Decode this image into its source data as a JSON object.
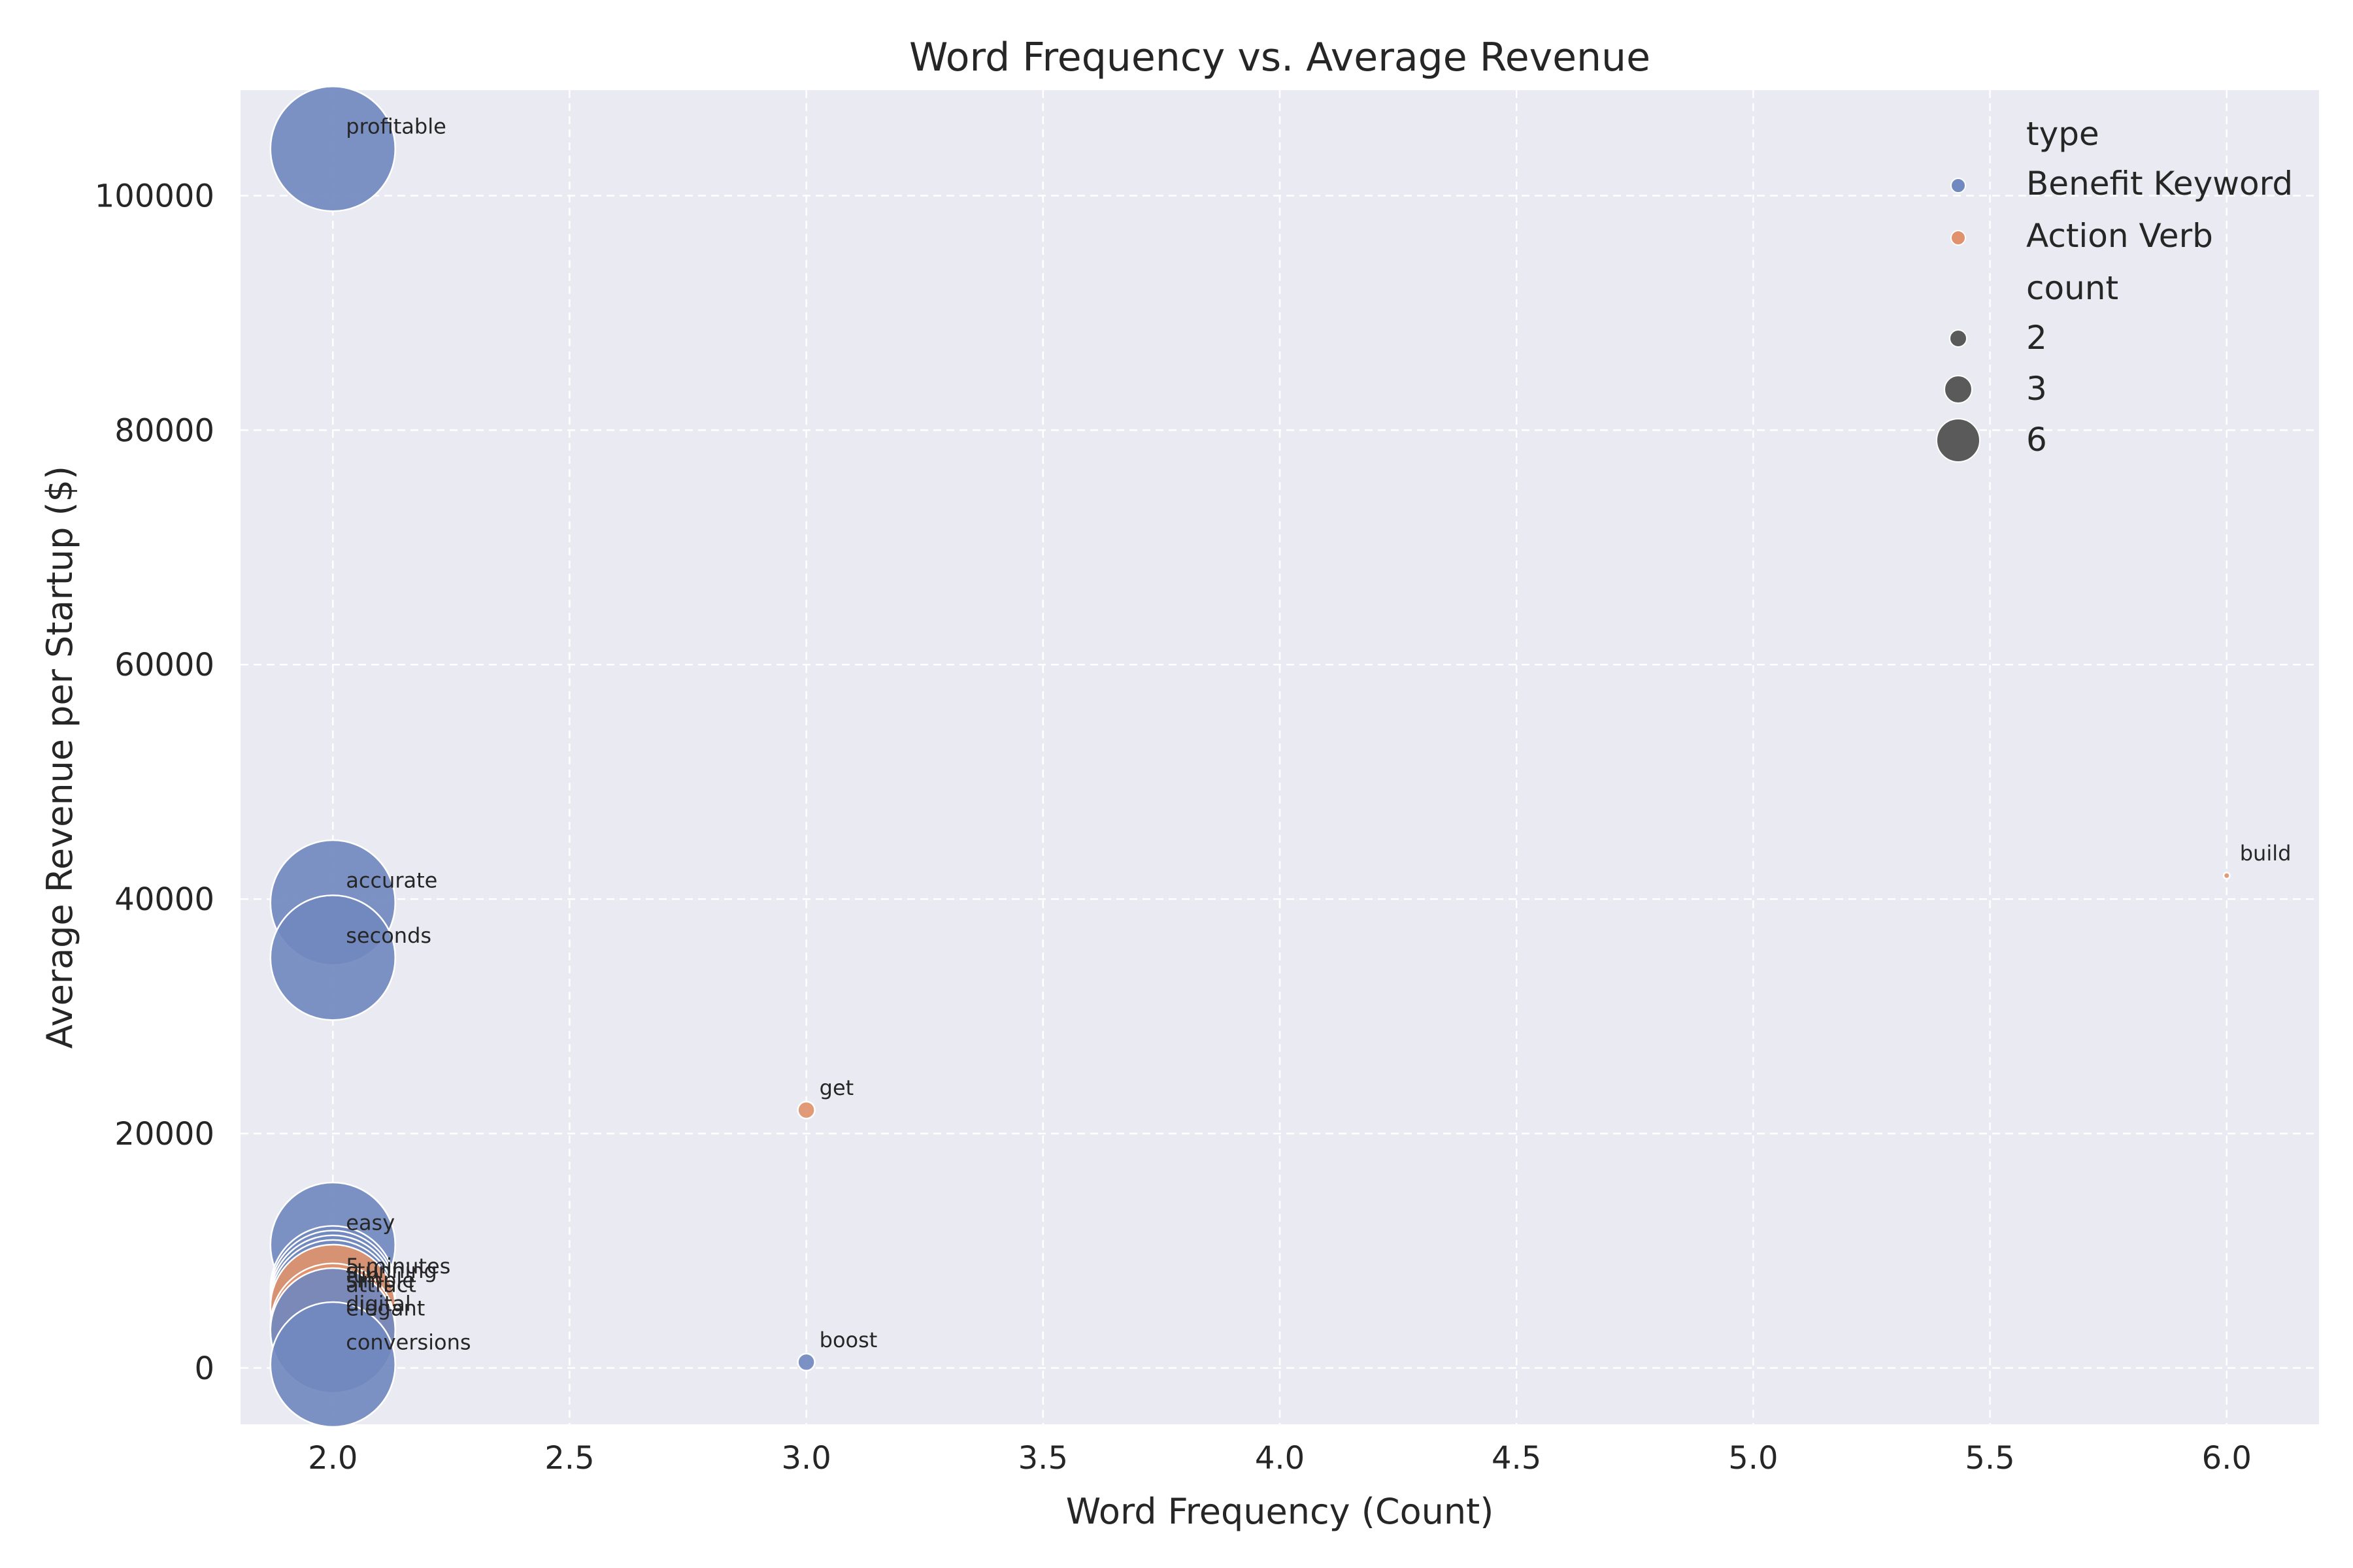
{
  "chart_data": {
    "type": "scatter",
    "title": "Word Frequency vs. Average Revenue",
    "xlabel": "Word Frequency (Count)",
    "ylabel": "Average Revenue per Startup ($)",
    "xlim": [
      1.805,
      6.195
    ],
    "ylim": [
      -4800,
      109000
    ],
    "xticks": [
      2.0,
      2.5,
      3.0,
      3.5,
      4.0,
      4.5,
      5.0,
      5.5,
      6.0
    ],
    "xtick_labels": [
      "2.0",
      "2.5",
      "3.0",
      "3.5",
      "4.0",
      "4.5",
      "5.0",
      "5.5",
      "6.0"
    ],
    "yticks": [
      0,
      20000,
      40000,
      60000,
      80000,
      100000
    ],
    "ytick_labels": [
      "0",
      "20000",
      "40000",
      "60000",
      "80000",
      "100000"
    ],
    "grid": true,
    "legend_position": "top-right",
    "hue_legend_title": "type",
    "size_legend_title": "count",
    "colors": {
      "Benefit Keyword": "#7189bf",
      "Action Verb": "#e0926d",
      "size_legend": "#5a5a5a",
      "plot_bg": "#eaeaf2"
    },
    "hue_levels": [
      "Benefit Keyword",
      "Action Verb"
    ],
    "size_levels": [
      {
        "label": "2",
        "count": 2
      },
      {
        "label": "3",
        "count": 3
      },
      {
        "label": "6",
        "count": 6
      }
    ],
    "points": [
      {
        "word": "profitable",
        "x": 2,
        "y": 104000,
        "type": "Benefit Keyword"
      },
      {
        "word": "accurate",
        "x": 2,
        "y": 39700,
        "type": "Benefit Keyword"
      },
      {
        "word": "seconds",
        "x": 2,
        "y": 35000,
        "type": "Benefit Keyword"
      },
      {
        "word": "easy",
        "x": 2,
        "y": 10500,
        "type": "Benefit Keyword"
      },
      {
        "word": "5 minutes",
        "x": 2,
        "y": 6800,
        "type": "Benefit Keyword"
      },
      {
        "word": "stunning",
        "x": 2,
        "y": 6400,
        "type": "Benefit Keyword"
      },
      {
        "word": "fun",
        "x": 2,
        "y": 6000,
        "type": "Benefit Keyword"
      },
      {
        "word": "simple",
        "x": 2,
        "y": 5600,
        "type": "Benefit Keyword"
      },
      {
        "word": "attract",
        "x": 2,
        "y": 5200,
        "type": "Action Verb"
      },
      {
        "word": "digital",
        "x": 2,
        "y": 3600,
        "type": "Action Verb"
      },
      {
        "word": "elegant",
        "x": 2,
        "y": 3200,
        "type": "Benefit Keyword"
      },
      {
        "word": "conversions",
        "x": 2,
        "y": 300,
        "type": "Benefit Keyword"
      },
      {
        "word": "get",
        "x": 3,
        "y": 22000,
        "type": "Action Verb"
      },
      {
        "word": "boost",
        "x": 3,
        "y": 500,
        "type": "Benefit Keyword"
      },
      {
        "word": "build",
        "x": 6,
        "y": 42000,
        "type": "Action Verb"
      }
    ]
  }
}
